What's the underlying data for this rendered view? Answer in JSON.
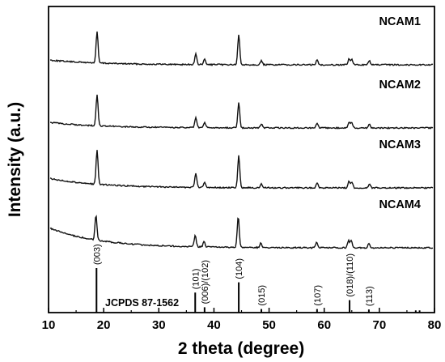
{
  "chart_data": {
    "type": "line",
    "xlabel": "2 theta (degree)",
    "ylabel": "Intensity (a.u.)",
    "xlim": [
      10,
      80
    ],
    "x_ticks": [
      "10",
      "20",
      "30",
      "40",
      "50",
      "60",
      "70",
      "80"
    ],
    "series": [
      {
        "name": "NCAM1",
        "peaks": [
          {
            "x": 18.8,
            "h": 0.48
          },
          {
            "x": 36.7,
            "h": 0.16
          },
          {
            "x": 38.3,
            "h": 0.08
          },
          {
            "x": 44.5,
            "h": 0.46
          },
          {
            "x": 48.6,
            "h": 0.06
          },
          {
            "x": 58.7,
            "h": 0.07
          },
          {
            "x": 64.5,
            "h": 0.09
          },
          {
            "x": 65.0,
            "h": 0.08
          },
          {
            "x": 68.2,
            "h": 0.06
          }
        ]
      },
      {
        "name": "NCAM2",
        "peaks": [
          {
            "x": 18.8,
            "h": 0.48
          },
          {
            "x": 36.7,
            "h": 0.16
          },
          {
            "x": 38.3,
            "h": 0.08
          },
          {
            "x": 44.5,
            "h": 0.4
          },
          {
            "x": 48.6,
            "h": 0.06
          },
          {
            "x": 58.7,
            "h": 0.07
          },
          {
            "x": 64.5,
            "h": 0.09
          },
          {
            "x": 65.0,
            "h": 0.08
          },
          {
            "x": 68.2,
            "h": 0.06
          }
        ]
      },
      {
        "name": "NCAM3",
        "peaks": [
          {
            "x": 18.8,
            "h": 0.52
          },
          {
            "x": 36.7,
            "h": 0.21
          },
          {
            "x": 38.3,
            "h": 0.08
          },
          {
            "x": 44.5,
            "h": 0.5
          },
          {
            "x": 48.6,
            "h": 0.06
          },
          {
            "x": 58.7,
            "h": 0.08
          },
          {
            "x": 64.5,
            "h": 0.1
          },
          {
            "x": 65.0,
            "h": 0.09
          },
          {
            "x": 68.2,
            "h": 0.06
          }
        ]
      },
      {
        "name": "NCAM4",
        "peaks": [
          {
            "x": 18.6,
            "h": 0.38
          },
          {
            "x": 36.6,
            "h": 0.18
          },
          {
            "x": 38.2,
            "h": 0.08
          },
          {
            "x": 44.4,
            "h": 0.48
          },
          {
            "x": 48.5,
            "h": 0.07
          },
          {
            "x": 58.6,
            "h": 0.08
          },
          {
            "x": 64.4,
            "h": 0.11
          },
          {
            "x": 64.9,
            "h": 0.11
          },
          {
            "x": 68.1,
            "h": 0.07
          }
        ]
      }
    ],
    "reference": {
      "name": "JCPDS 87-1562",
      "lines": [
        {
          "x": 18.7,
          "label": "(003)",
          "h": 1.0
        },
        {
          "x": 36.6,
          "label": "(101)",
          "h": 0.45
        },
        {
          "x": 38.3,
          "label": "(006)/(102)",
          "h": 0.12
        },
        {
          "x": 44.5,
          "label": "(104)",
          "h": 0.68
        },
        {
          "x": 48.6,
          "label": "(015)",
          "h": 0.08
        },
        {
          "x": 58.7,
          "label": "(107)",
          "h": 0.08
        },
        {
          "x": 64.6,
          "label": "(018)/(110)",
          "h": 0.28
        },
        {
          "x": 68.1,
          "label": "(113)",
          "h": 0.07
        },
        {
          "x": 76.6,
          "label": "",
          "h": 0.05
        },
        {
          "x": 77.3,
          "label": "",
          "h": 0.05
        }
      ]
    }
  }
}
